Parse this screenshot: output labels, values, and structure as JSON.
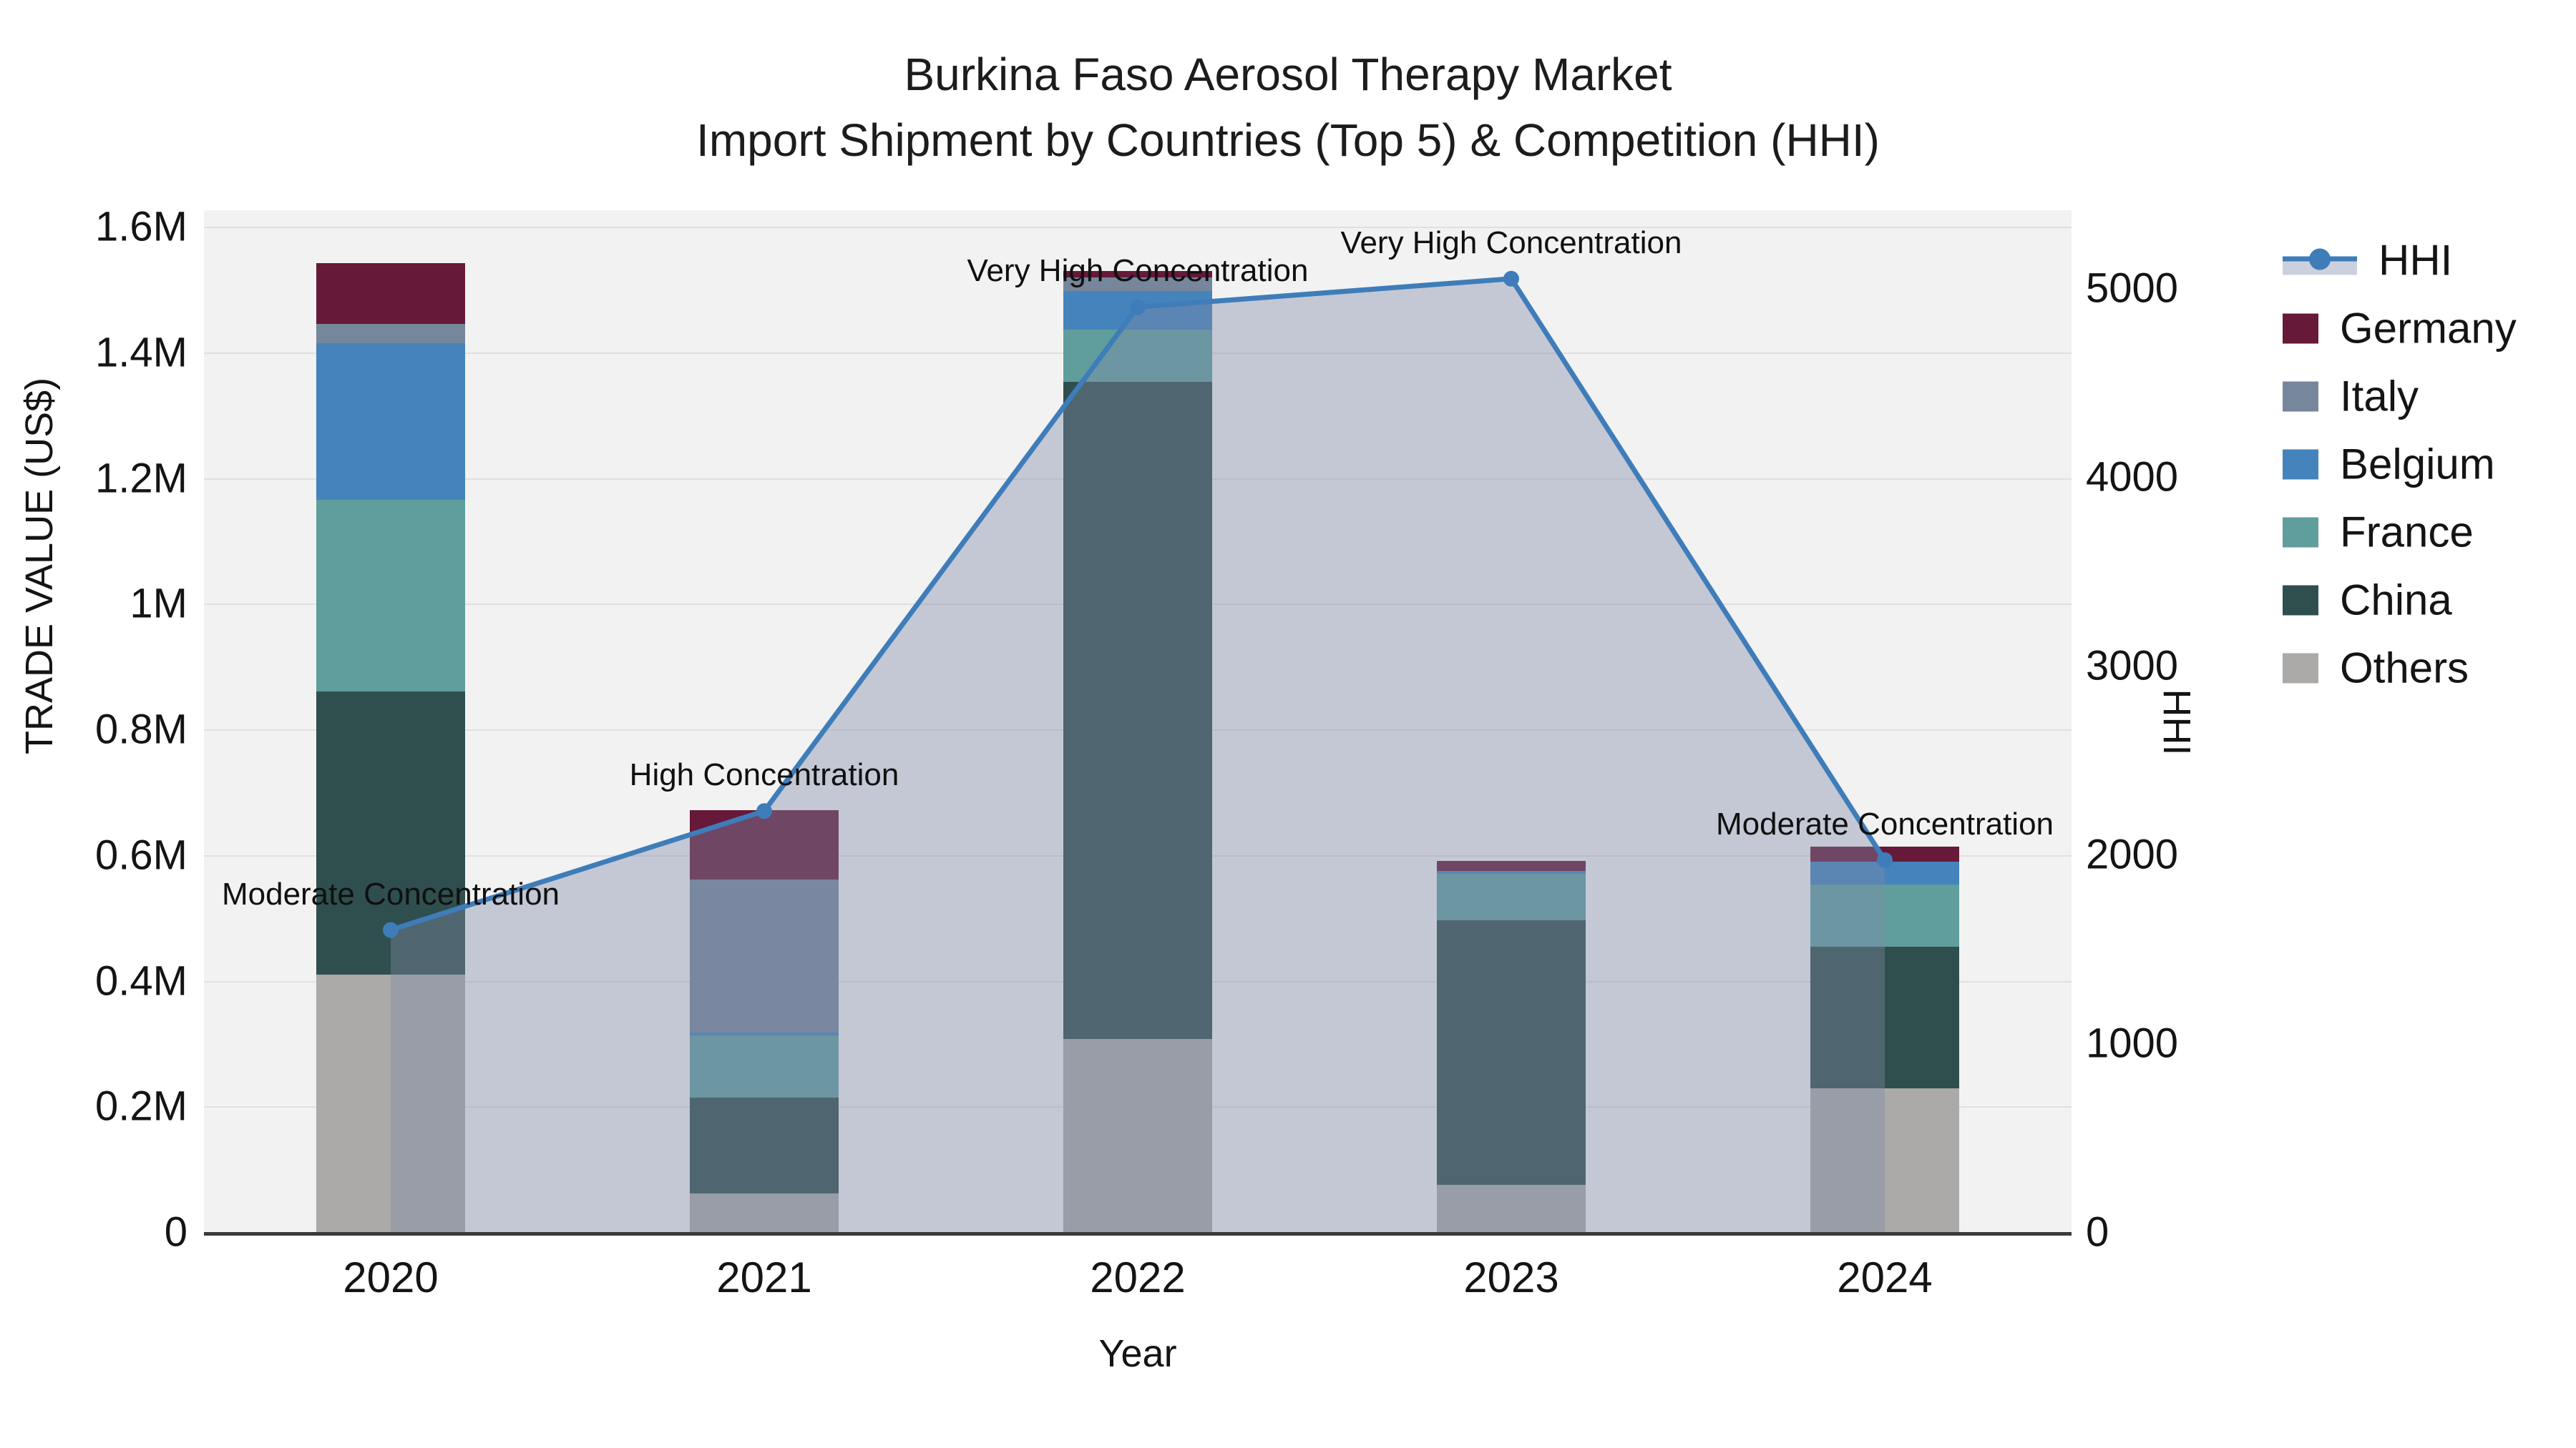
{
  "title": {
    "line1": "Burkina Faso Aerosol Therapy Market",
    "line2": "Import Shipment by Countries (Top 5) & Competition (HHI)"
  },
  "axes": {
    "y_left": {
      "title": "TRADE VALUE (US$)",
      "tick_labels": [
        "0",
        "0.2M",
        "0.4M",
        "0.6M",
        "0.8M",
        "1M",
        "1.2M",
        "1.4M",
        "1.6M"
      ],
      "tick_values": [
        0,
        0.2,
        0.4,
        0.6,
        0.8,
        1.0,
        1.2,
        1.4,
        1.6
      ]
    },
    "y_right": {
      "title": "HHI",
      "tick_labels": [
        "0",
        "1000",
        "2000",
        "3000",
        "4000",
        "5000"
      ],
      "tick_values": [
        0,
        1000,
        2000,
        3000,
        4000,
        5000
      ]
    },
    "x": {
      "title": "Year"
    }
  },
  "chart_data": {
    "type": "combo_stacked_bar_line",
    "categories": [
      "2020",
      "2021",
      "2022",
      "2023",
      "2024"
    ],
    "bar_value_unit": "million US$ (trade value)",
    "series": [
      {
        "name": "Others",
        "color": "#ABAAA8",
        "values": [
          0.41,
          0.062,
          0.307,
          0.075,
          0.229
        ]
      },
      {
        "name": "China",
        "color": "#2F4F4E",
        "values": [
          0.45,
          0.152,
          1.046,
          0.421,
          0.225
        ]
      },
      {
        "name": "France",
        "color": "#5F9E9D",
        "values": [
          0.305,
          0.099,
          0.083,
          0.074,
          0.099
        ]
      },
      {
        "name": "Belgium",
        "color": "#4483BB",
        "values": [
          0.25,
          0.005,
          0.062,
          0.005,
          0.036
        ]
      },
      {
        "name": "Italy",
        "color": "#76869B",
        "values": [
          0.03,
          0.243,
          0.021,
          0.0,
          0.0
        ]
      },
      {
        "name": "Germany",
        "color": "#661939",
        "values": [
          0.097,
          0.11,
          0.01,
          0.016,
          0.024
        ]
      }
    ],
    "line": {
      "name": "HHI",
      "color": "#3E7DB9",
      "area_fill": "rgba(127,138,167,0.40)",
      "values": [
        1600,
        2230,
        4900,
        5050,
        1970
      ]
    },
    "annotations": [
      {
        "x": "2020",
        "text": "Moderate Concentration"
      },
      {
        "x": "2021",
        "text": "High Concentration"
      },
      {
        "x": "2022",
        "text": "Very High Concentration"
      },
      {
        "x": "2023",
        "text": "Very High Concentration"
      },
      {
        "x": "2024",
        "text": "Moderate Concentration"
      }
    ],
    "legend": [
      "HHI",
      "Germany",
      "Italy",
      "Belgium",
      "France",
      "China",
      "Others"
    ],
    "ylim_left": [
      0,
      1.626
    ],
    "ylim_right": [
      0,
      5409
    ],
    "grid": "horizontal"
  },
  "colors": {
    "plot_background": "#F2F2F2",
    "gridline": "#E0E0E0",
    "axis_line": "#3a3a3a",
    "text": "#141414"
  }
}
